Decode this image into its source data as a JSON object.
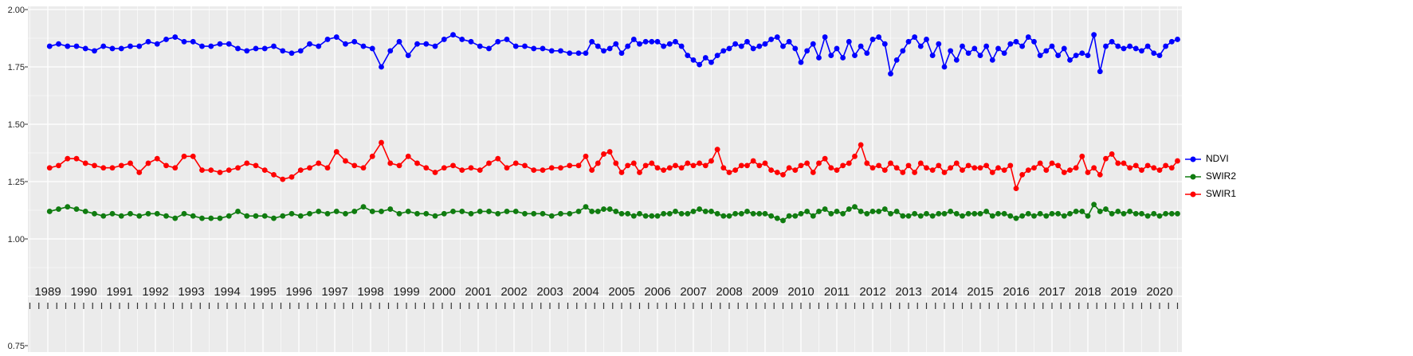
{
  "chart_data": {
    "type": "line",
    "title": "",
    "xlabel": "",
    "ylabel": "",
    "grid": true,
    "panel_background": "#EBEBEB",
    "grid_color": "#FFFFFF",
    "axis_text_color": "#1a1a1a",
    "legend_position": "right",
    "x_range": [
      1988.45,
      2020.6
    ],
    "y_range": [
      0.75,
      2.0
    ],
    "y_tick_labels": [
      "2.00",
      "1.75",
      "1.50",
      "1.25",
      "1.00",
      "0.75"
    ],
    "y_tick_values": [
      2.0,
      1.75,
      1.5,
      1.25,
      1.0,
      0.75
    ],
    "x_tick_labels": [
      "1989",
      "1990",
      "1991",
      "1992",
      "1993",
      "1994",
      "1995",
      "1996",
      "1997",
      "1998",
      "1999",
      "2000",
      "2001",
      "2002",
      "2003",
      "2004",
      "2005",
      "2006",
      "2007",
      "2008",
      "2009",
      "2010",
      "2011",
      "2012",
      "2013",
      "2014",
      "2015",
      "2016",
      "2017",
      "2018",
      "2019",
      "2020"
    ],
    "x_tick_values": [
      1989,
      1990,
      1991,
      1992,
      1993,
      1994,
      1995,
      1996,
      1997,
      1998,
      1999,
      2000,
      2001,
      2002,
      2003,
      2004,
      2005,
      2006,
      2007,
      2008,
      2009,
      2010,
      2011,
      2012,
      2013,
      2014,
      2015,
      2016,
      2017,
      2018,
      2019,
      2020
    ],
    "x": [
      1989.05,
      1989.3,
      1989.55,
      1989.8,
      1990.05,
      1990.3,
      1990.55,
      1990.8,
      1991.05,
      1991.3,
      1991.55,
      1991.8,
      1992.05,
      1992.3,
      1992.55,
      1992.8,
      1993.05,
      1993.3,
      1993.55,
      1993.8,
      1994.05,
      1994.3,
      1994.55,
      1994.8,
      1995.05,
      1995.3,
      1995.55,
      1995.8,
      1996.05,
      1996.3,
      1996.55,
      1996.8,
      1997.05,
      1997.3,
      1997.55,
      1997.8,
      1998.05,
      1998.3,
      1998.55,
      1998.8,
      1999.05,
      1999.3,
      1999.55,
      1999.8,
      2000.05,
      2000.3,
      2000.55,
      2000.8,
      2001.05,
      2001.3,
      2001.55,
      2001.8,
      2002.05,
      2002.3,
      2002.55,
      2002.8,
      2003.05,
      2003.3,
      2003.55,
      2003.8,
      2004.0,
      2004.17,
      2004.34,
      2004.5,
      2004.67,
      2004.84,
      2005.0,
      2005.17,
      2005.34,
      2005.5,
      2005.67,
      2005.84,
      2006.0,
      2006.17,
      2006.34,
      2006.5,
      2006.67,
      2006.84,
      2007.0,
      2007.17,
      2007.34,
      2007.5,
      2007.67,
      2007.84,
      2008.0,
      2008.17,
      2008.34,
      2008.5,
      2008.67,
      2008.84,
      2009.0,
      2009.17,
      2009.34,
      2009.5,
      2009.67,
      2009.84,
      2010.0,
      2010.17,
      2010.34,
      2010.5,
      2010.67,
      2010.84,
      2011.0,
      2011.17,
      2011.34,
      2011.5,
      2011.67,
      2011.84,
      2012.0,
      2012.17,
      2012.34,
      2012.5,
      2012.67,
      2012.84,
      2013.0,
      2013.17,
      2013.34,
      2013.5,
      2013.67,
      2013.84,
      2014.0,
      2014.17,
      2014.34,
      2014.5,
      2014.67,
      2014.84,
      2015.0,
      2015.17,
      2015.34,
      2015.5,
      2015.67,
      2015.84,
      2016.0,
      2016.17,
      2016.34,
      2016.5,
      2016.67,
      2016.84,
      2017.0,
      2017.17,
      2017.34,
      2017.5,
      2017.67,
      2017.84,
      2018.0,
      2018.17,
      2018.34,
      2018.5,
      2018.67,
      2018.84,
      2019.0,
      2019.17,
      2019.34,
      2019.5,
      2019.67,
      2019.84,
      2020.0,
      2020.17,
      2020.34,
      2020.5
    ],
    "series": [
      {
        "name": "NDVI",
        "color": "#0000FF",
        "values": [
          1.84,
          1.85,
          1.84,
          1.84,
          1.83,
          1.82,
          1.84,
          1.83,
          1.83,
          1.84,
          1.84,
          1.86,
          1.85,
          1.87,
          1.88,
          1.86,
          1.86,
          1.84,
          1.84,
          1.85,
          1.85,
          1.83,
          1.82,
          1.83,
          1.83,
          1.84,
          1.82,
          1.81,
          1.82,
          1.85,
          1.84,
          1.87,
          1.88,
          1.85,
          1.86,
          1.84,
          1.83,
          1.75,
          1.82,
          1.86,
          1.8,
          1.85,
          1.85,
          1.84,
          1.87,
          1.89,
          1.87,
          1.86,
          1.84,
          1.83,
          1.86,
          1.87,
          1.84,
          1.84,
          1.83,
          1.83,
          1.82,
          1.82,
          1.81,
          1.81,
          1.81,
          1.86,
          1.84,
          1.82,
          1.83,
          1.85,
          1.81,
          1.84,
          1.87,
          1.85,
          1.86,
          1.86,
          1.86,
          1.84,
          1.85,
          1.86,
          1.84,
          1.8,
          1.78,
          1.76,
          1.79,
          1.77,
          1.8,
          1.82,
          1.83,
          1.85,
          1.84,
          1.86,
          1.83,
          1.84,
          1.85,
          1.87,
          1.88,
          1.84,
          1.86,
          1.83,
          1.77,
          1.82,
          1.85,
          1.79,
          1.88,
          1.8,
          1.83,
          1.79,
          1.86,
          1.8,
          1.84,
          1.81,
          1.87,
          1.88,
          1.85,
          1.72,
          1.78,
          1.82,
          1.86,
          1.88,
          1.84,
          1.87,
          1.8,
          1.85,
          1.75,
          1.82,
          1.78,
          1.84,
          1.81,
          1.83,
          1.8,
          1.84,
          1.78,
          1.83,
          1.81,
          1.85,
          1.86,
          1.84,
          1.88,
          1.86,
          1.8,
          1.82,
          1.84,
          1.8,
          1.83,
          1.78,
          1.8,
          1.81,
          1.8,
          1.89,
          1.73,
          1.84,
          1.86,
          1.84,
          1.83,
          1.84,
          1.83,
          1.82,
          1.84,
          1.81,
          1.8,
          1.84,
          1.86,
          1.87
        ]
      },
      {
        "name": "SWIR2",
        "color": "#107C10",
        "values": [
          1.12,
          1.13,
          1.14,
          1.13,
          1.12,
          1.11,
          1.1,
          1.11,
          1.1,
          1.11,
          1.1,
          1.11,
          1.11,
          1.1,
          1.09,
          1.11,
          1.1,
          1.09,
          1.09,
          1.09,
          1.1,
          1.12,
          1.1,
          1.1,
          1.1,
          1.09,
          1.1,
          1.11,
          1.1,
          1.11,
          1.12,
          1.11,
          1.12,
          1.11,
          1.12,
          1.14,
          1.12,
          1.12,
          1.13,
          1.11,
          1.12,
          1.11,
          1.11,
          1.1,
          1.11,
          1.12,
          1.12,
          1.11,
          1.12,
          1.12,
          1.11,
          1.12,
          1.12,
          1.11,
          1.11,
          1.11,
          1.1,
          1.11,
          1.11,
          1.12,
          1.14,
          1.12,
          1.12,
          1.13,
          1.13,
          1.12,
          1.11,
          1.11,
          1.1,
          1.11,
          1.1,
          1.1,
          1.1,
          1.11,
          1.11,
          1.12,
          1.11,
          1.11,
          1.12,
          1.13,
          1.12,
          1.12,
          1.11,
          1.1,
          1.1,
          1.11,
          1.11,
          1.12,
          1.11,
          1.11,
          1.11,
          1.1,
          1.09,
          1.08,
          1.1,
          1.1,
          1.11,
          1.12,
          1.1,
          1.12,
          1.13,
          1.11,
          1.12,
          1.11,
          1.13,
          1.14,
          1.12,
          1.11,
          1.12,
          1.12,
          1.13,
          1.11,
          1.12,
          1.1,
          1.1,
          1.11,
          1.1,
          1.11,
          1.1,
          1.11,
          1.11,
          1.12,
          1.11,
          1.1,
          1.11,
          1.11,
          1.11,
          1.12,
          1.1,
          1.11,
          1.11,
          1.1,
          1.09,
          1.1,
          1.11,
          1.1,
          1.11,
          1.1,
          1.11,
          1.11,
          1.1,
          1.11,
          1.12,
          1.12,
          1.1,
          1.15,
          1.12,
          1.13,
          1.11,
          1.12,
          1.11,
          1.12,
          1.11,
          1.11,
          1.1,
          1.11,
          1.1,
          1.11,
          1.11,
          1.11
        ]
      },
      {
        "name": "SWIR1",
        "color": "#FF0000",
        "values": [
          1.31,
          1.32,
          1.35,
          1.35,
          1.33,
          1.32,
          1.31,
          1.31,
          1.32,
          1.33,
          1.29,
          1.33,
          1.35,
          1.32,
          1.31,
          1.36,
          1.36,
          1.3,
          1.3,
          1.29,
          1.3,
          1.31,
          1.33,
          1.32,
          1.3,
          1.28,
          1.26,
          1.27,
          1.3,
          1.31,
          1.33,
          1.31,
          1.38,
          1.34,
          1.32,
          1.31,
          1.36,
          1.42,
          1.33,
          1.32,
          1.36,
          1.33,
          1.31,
          1.29,
          1.31,
          1.32,
          1.3,
          1.31,
          1.3,
          1.33,
          1.35,
          1.31,
          1.33,
          1.32,
          1.3,
          1.3,
          1.31,
          1.31,
          1.32,
          1.32,
          1.36,
          1.3,
          1.33,
          1.37,
          1.38,
          1.33,
          1.29,
          1.32,
          1.33,
          1.29,
          1.32,
          1.33,
          1.31,
          1.3,
          1.31,
          1.32,
          1.31,
          1.33,
          1.32,
          1.33,
          1.32,
          1.34,
          1.39,
          1.31,
          1.29,
          1.3,
          1.32,
          1.32,
          1.34,
          1.32,
          1.33,
          1.3,
          1.29,
          1.28,
          1.31,
          1.3,
          1.32,
          1.33,
          1.29,
          1.33,
          1.35,
          1.31,
          1.3,
          1.32,
          1.33,
          1.36,
          1.41,
          1.33,
          1.31,
          1.32,
          1.3,
          1.33,
          1.31,
          1.29,
          1.32,
          1.29,
          1.33,
          1.31,
          1.3,
          1.32,
          1.29,
          1.31,
          1.33,
          1.3,
          1.32,
          1.31,
          1.31,
          1.32,
          1.29,
          1.31,
          1.3,
          1.32,
          1.22,
          1.28,
          1.3,
          1.31,
          1.33,
          1.3,
          1.33,
          1.32,
          1.29,
          1.3,
          1.31,
          1.36,
          1.29,
          1.31,
          1.28,
          1.35,
          1.37,
          1.33,
          1.33,
          1.31,
          1.32,
          1.3,
          1.32,
          1.31,
          1.3,
          1.32,
          1.31,
          1.34
        ]
      }
    ],
    "legend_entries": [
      "NDVI",
      "SWIR2",
      "SWIR1"
    ]
  }
}
